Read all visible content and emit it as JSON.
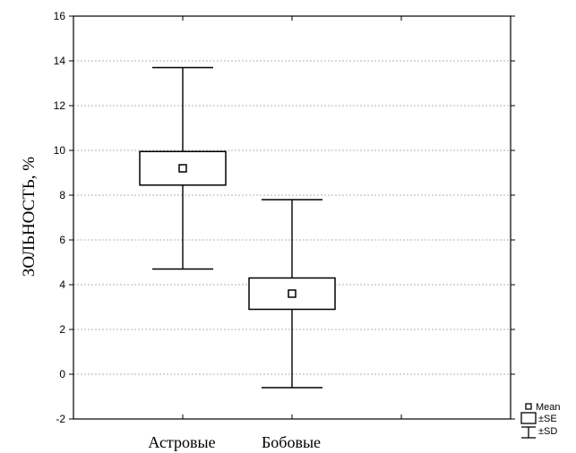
{
  "chart_data": {
    "type": "boxplot",
    "title": "",
    "xlabel": "",
    "ylabel": "ЗОЛЬНОСТЬ, %",
    "ylim": [
      -2,
      16
    ],
    "yticks": [
      -2,
      0,
      2,
      4,
      6,
      8,
      10,
      12,
      14,
      16
    ],
    "grid": true,
    "categories": [
      "Астровые",
      "Бобовые"
    ],
    "series": [
      {
        "category": "Астровые",
        "mean": 9.2,
        "se_low": 8.45,
        "se_high": 9.95,
        "sd_low": 4.7,
        "sd_high": 13.7
      },
      {
        "category": "Бобовые",
        "mean": 3.6,
        "se_low": 2.9,
        "se_high": 4.3,
        "sd_low": -0.6,
        "sd_high": 7.8
      }
    ],
    "legend": {
      "placement": "bottom-right",
      "entries": [
        "Mean",
        "±SE",
        "±SD"
      ]
    }
  }
}
